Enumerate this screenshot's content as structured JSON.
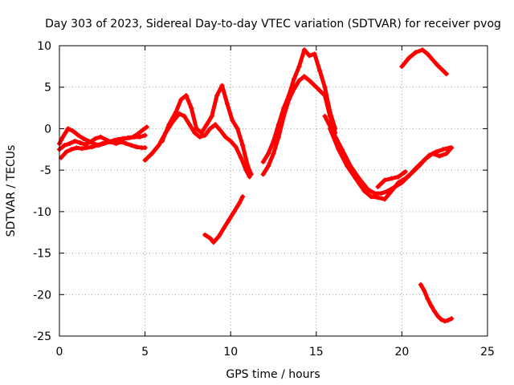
{
  "chart_data": {
    "type": "line",
    "title": "Day 303 of 2023, Sidereal Day-to-day VTEC variation (SDTVAR) for receiver pvog",
    "xlabel": "GPS time / hours",
    "ylabel": "SDTVAR / TECUs",
    "xlim": [
      0,
      25
    ],
    "ylim": [
      -25,
      10
    ],
    "xticks": [
      0,
      5,
      10,
      15,
      20,
      25
    ],
    "yticks": [
      -25,
      -20,
      -15,
      -10,
      -5,
      0,
      5,
      10
    ],
    "xtick_labels": [
      "0",
      "5",
      "10",
      "15",
      "20",
      "25"
    ],
    "ytick_labels": [
      "-25",
      "-20",
      "-15",
      "-10",
      "-5",
      "0",
      "5",
      "10"
    ],
    "grid": true,
    "legend": "none",
    "color": "#ff0000",
    "series": [
      {
        "name": "track-1",
        "x": [
          0.0,
          0.2,
          0.5,
          0.8,
          1.1,
          1.4,
          1.7,
          2.0,
          2.3,
          2.6,
          2.9,
          3.2,
          3.5,
          3.8,
          4.1,
          4.4,
          4.7,
          5.0
        ],
        "y": [
          -1.8,
          -1.0,
          0.0,
          -0.3,
          -0.8,
          -1.2,
          -1.5,
          -1.8,
          -2.0,
          -1.8,
          -1.6,
          -1.4,
          -1.3,
          -1.2,
          -1.1,
          -1.0,
          -1.0,
          -0.8
        ]
      },
      {
        "name": "track-2",
        "x": [
          0.1,
          0.4,
          0.7,
          1.0,
          1.3,
          1.6,
          1.9,
          2.2,
          2.5,
          2.8,
          3.1,
          3.4,
          3.7,
          4.0,
          4.3,
          4.6,
          4.9,
          5.1
        ],
        "y": [
          -3.5,
          -2.8,
          -2.5,
          -2.3,
          -2.4,
          -2.3,
          -2.2,
          -2.0,
          -1.8,
          -1.6,
          -1.5,
          -1.3,
          -1.2,
          -1.1,
          -1.0,
          -0.6,
          -0.1,
          0.2
        ]
      },
      {
        "name": "track-3",
        "x": [
          0.0,
          0.3,
          0.6,
          0.9,
          1.2,
          1.5,
          1.8,
          2.1,
          2.4,
          2.7,
          3.0,
          3.3,
          3.6,
          3.9,
          4.2,
          4.5,
          4.8,
          5.0
        ],
        "y": [
          -2.5,
          -2.0,
          -1.8,
          -1.5,
          -1.7,
          -1.9,
          -1.6,
          -1.2,
          -1.0,
          -1.3,
          -1.6,
          -1.8,
          -1.6,
          -1.8,
          -2.0,
          -2.2,
          -2.3,
          -2.3
        ]
      },
      {
        "name": "track-4",
        "x": [
          5.0,
          5.4,
          5.8,
          6.2,
          6.6,
          7.0,
          7.3,
          7.6,
          7.9,
          8.2,
          8.5,
          8.8,
          9.1,
          9.4,
          9.7,
          10.0,
          10.3,
          10.6,
          10.9,
          11.1
        ],
        "y": [
          -3.8,
          -3.0,
          -2.0,
          -0.5,
          0.8,
          1.8,
          1.5,
          0.5,
          -0.5,
          -1.0,
          -0.8,
          0.0,
          0.5,
          -0.2,
          -1.0,
          -1.5,
          -2.2,
          -3.5,
          -5.0,
          -5.8
        ]
      },
      {
        "name": "track-5",
        "x": [
          6.0,
          6.4,
          6.8,
          7.1,
          7.4,
          7.7,
          8.0,
          8.3,
          8.6,
          8.9,
          9.2,
          9.5,
          9.8,
          10.1,
          10.4,
          10.7,
          11.0,
          11.2
        ],
        "y": [
          -1.5,
          0.5,
          2.0,
          3.5,
          4.0,
          2.5,
          0.0,
          -0.5,
          0.5,
          1.5,
          4.0,
          5.2,
          3.0,
          1.0,
          0.0,
          -2.0,
          -4.5,
          -5.5
        ]
      },
      {
        "name": "track-6",
        "x": [
          8.5,
          8.8,
          9.0,
          9.3,
          9.6,
          9.9,
          10.2,
          10.5,
          10.7
        ],
        "y": [
          -12.8,
          -13.2,
          -13.7,
          -13.0,
          -12.0,
          -11.0,
          -10.0,
          -9.0,
          -8.2
        ]
      },
      {
        "name": "track-7",
        "x": [
          11.9,
          12.2,
          12.5,
          12.8,
          13.1,
          13.4,
          13.7,
          14.0,
          14.3,
          14.6,
          14.9,
          15.2,
          15.5,
          15.8,
          16.1
        ],
        "y": [
          -5.5,
          -4.5,
          -3.0,
          -1.0,
          1.5,
          3.5,
          4.8,
          5.8,
          6.3,
          5.8,
          5.2,
          4.6,
          4.0,
          1.5,
          -0.5
        ]
      },
      {
        "name": "track-8",
        "x": [
          11.9,
          12.2,
          12.5,
          12.8,
          13.1,
          13.4,
          13.7,
          14.0,
          14.3,
          14.6,
          14.9,
          15.2,
          15.5,
          15.8,
          16.1
        ],
        "y": [
          -4.0,
          -3.0,
          -1.5,
          0.5,
          2.5,
          4.0,
          6.0,
          7.5,
          9.5,
          8.8,
          9.0,
          7.0,
          5.0,
          2.0,
          0.0
        ]
      },
      {
        "name": "track-9",
        "x": [
          15.5,
          16.0,
          16.5,
          17.0,
          17.5,
          18.0,
          18.4,
          18.8,
          19.2,
          19.6,
          20.0,
          20.4,
          20.8,
          21.2,
          21.6,
          22.0,
          22.4,
          22.8
        ],
        "y": [
          1.5,
          -0.5,
          -2.5,
          -4.5,
          -6.0,
          -7.3,
          -7.8,
          -7.8,
          -7.5,
          -7.0,
          -6.5,
          -5.7,
          -4.8,
          -4.0,
          -3.2,
          -2.8,
          -2.5,
          -2.3
        ]
      },
      {
        "name": "track-10",
        "x": [
          15.8,
          16.3,
          16.8,
          17.3,
          17.8,
          18.2,
          18.6,
          19.0,
          19.4,
          19.8,
          20.2,
          20.6,
          21.0,
          21.4,
          21.8,
          22.2,
          22.6,
          22.9
        ],
        "y": [
          0.0,
          -2.5,
          -4.5,
          -6.0,
          -7.5,
          -8.2,
          -8.3,
          -8.5,
          -7.5,
          -6.5,
          -6.0,
          -5.3,
          -4.5,
          -3.6,
          -3.0,
          -3.3,
          -3.0,
          -2.3
        ]
      },
      {
        "name": "track-11",
        "x": [
          18.6,
          19.0,
          19.4,
          19.8,
          20.2
        ],
        "y": [
          -7.0,
          -6.2,
          -6.0,
          -5.8,
          -5.2
        ]
      },
      {
        "name": "track-12",
        "x": [
          20.0,
          20.4,
          20.8,
          21.2,
          21.5,
          21.8,
          22.1,
          22.4,
          22.6
        ],
        "y": [
          7.5,
          8.5,
          9.2,
          9.5,
          9.0,
          8.3,
          7.6,
          7.0,
          6.6
        ]
      },
      {
        "name": "track-13",
        "x": [
          21.1,
          21.3,
          21.5,
          21.7,
          21.9,
          22.1,
          22.3,
          22.5,
          22.7,
          22.9
        ],
        "y": [
          -18.8,
          -19.5,
          -20.5,
          -21.3,
          -22.0,
          -22.6,
          -23.0,
          -23.2,
          -23.1,
          -22.9
        ]
      }
    ]
  }
}
